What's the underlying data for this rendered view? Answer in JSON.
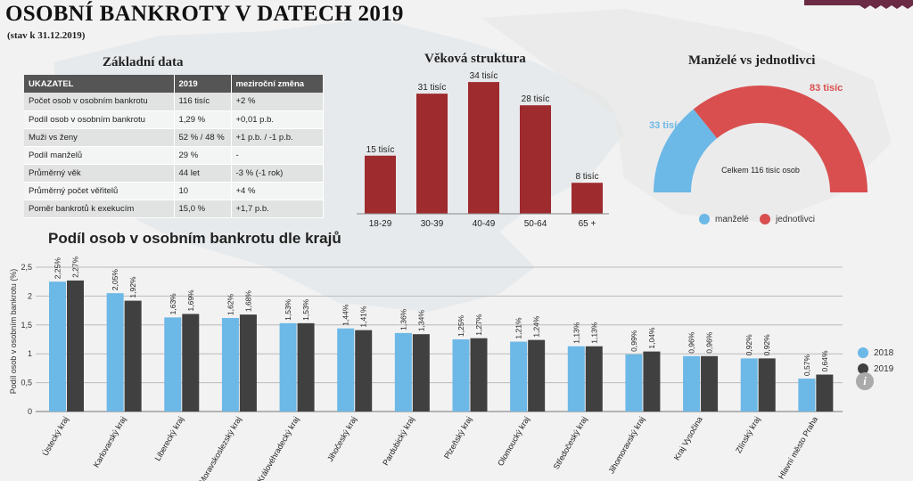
{
  "header": {
    "title": "OSOBNÍ BANKROTY V DATECH 2019",
    "subtitle": "(stav k 31.12.2019)"
  },
  "basic": {
    "title": "Základní data",
    "headers": [
      "UKAZATEL",
      "2019",
      "meziroční změna"
    ],
    "rows": [
      [
        "Počet osob v osobním bankrotu",
        "116 tisíc",
        "+2 %"
      ],
      [
        "Podíl osob v osobním bankrotu",
        "1,29 %",
        "+0,01 p.b."
      ],
      [
        "Muži vs ženy",
        "52 % / 48 %",
        "+1 p.b. / -1 p.b."
      ],
      [
        "Podíl manželů",
        "29 %",
        "-"
      ],
      [
        "Průměrný věk",
        "44 let",
        "-3 % (-1 rok)"
      ],
      [
        "Průměrný počet věřitelů",
        "10",
        "+4 %"
      ],
      [
        "Poměr bankrotů k exekucím",
        "15,0 %",
        "+1,7 p.b."
      ]
    ]
  },
  "colors": {
    "bar2018": "#6cb8e6",
    "bar2019": "#404040",
    "age": "#9e2b2e",
    "married": "#6cb8e6",
    "single": "#d94f50"
  },
  "chart_data": [
    {
      "type": "bar",
      "title": "Věková struktura",
      "categories": [
        "18-29",
        "30-39",
        "40-49",
        "50-64",
        "65 +"
      ],
      "values": [
        15,
        31,
        34,
        28,
        8
      ],
      "labels": [
        "15 tisíc",
        "31 tisíc",
        "34 tisíc",
        "28 tisíc",
        "8 tisíc"
      ],
      "unit": "tisíc"
    },
    {
      "type": "pie",
      "title": "Manželé vs jednotlivci",
      "variant": "half-donut",
      "slices": [
        {
          "name": "manželé",
          "value": 33,
          "label": "33 tisíc"
        },
        {
          "name": "jednotlivci",
          "value": 83,
          "label": "83 tisíc"
        }
      ],
      "center_text": "Celkem 116 tisíc osob",
      "legend": [
        "manželé",
        "jednotlivci"
      ]
    },
    {
      "type": "bar",
      "title": "Podíl osob v osobním bankrotu dle krajů",
      "ylabel": "Podíl osob v osobním bankrotu (%)",
      "ylim": [
        0,
        2.5
      ],
      "yticks": [
        "0",
        "0,5",
        "1",
        "1,5",
        "2",
        "2,5"
      ],
      "grid": true,
      "categories": [
        "Ústecký kraj",
        "Karlovarský kraj",
        "Liberecký kraj",
        "Moravskoslezský kraj",
        "Královéhradecký kraj",
        "Jihočeský kraj",
        "Pardubický kraj",
        "Plzeňský kraj",
        "Olomoucký kraj",
        "Středočeský kraj",
        "Jihomoravský kraj",
        "Kraj Vysočina",
        "Zlínský kraj",
        "Hlavní město Praha"
      ],
      "series": [
        {
          "name": "2018",
          "values": [
            2.25,
            2.05,
            1.63,
            1.62,
            1.53,
            1.44,
            1.36,
            1.25,
            1.21,
            1.13,
            0.99,
            0.96,
            0.92,
            0.57
          ],
          "labels": [
            "2,25%",
            "2,05%",
            "1,63%",
            "1,62%",
            "1,53%",
            "1,44%",
            "1,36%",
            "1,25%",
            "1,21%",
            "1,13%",
            "0,99%",
            "0,96%",
            "0,92%",
            "0,57%"
          ]
        },
        {
          "name": "2019",
          "values": [
            2.27,
            1.92,
            1.69,
            1.68,
            1.53,
            1.41,
            1.34,
            1.27,
            1.24,
            1.13,
            1.04,
            0.96,
            0.92,
            0.64
          ],
          "labels": [
            "2,27%",
            "1,92%",
            "1,69%",
            "1,68%",
            "1,53%",
            "1,41%",
            "1,34%",
            "1,27%",
            "1,24%",
            "1,13%",
            "1,04%",
            "0,96%",
            "0,92%",
            "0,64%"
          ]
        }
      ],
      "legend": [
        "2018",
        "2019"
      ]
    }
  ]
}
